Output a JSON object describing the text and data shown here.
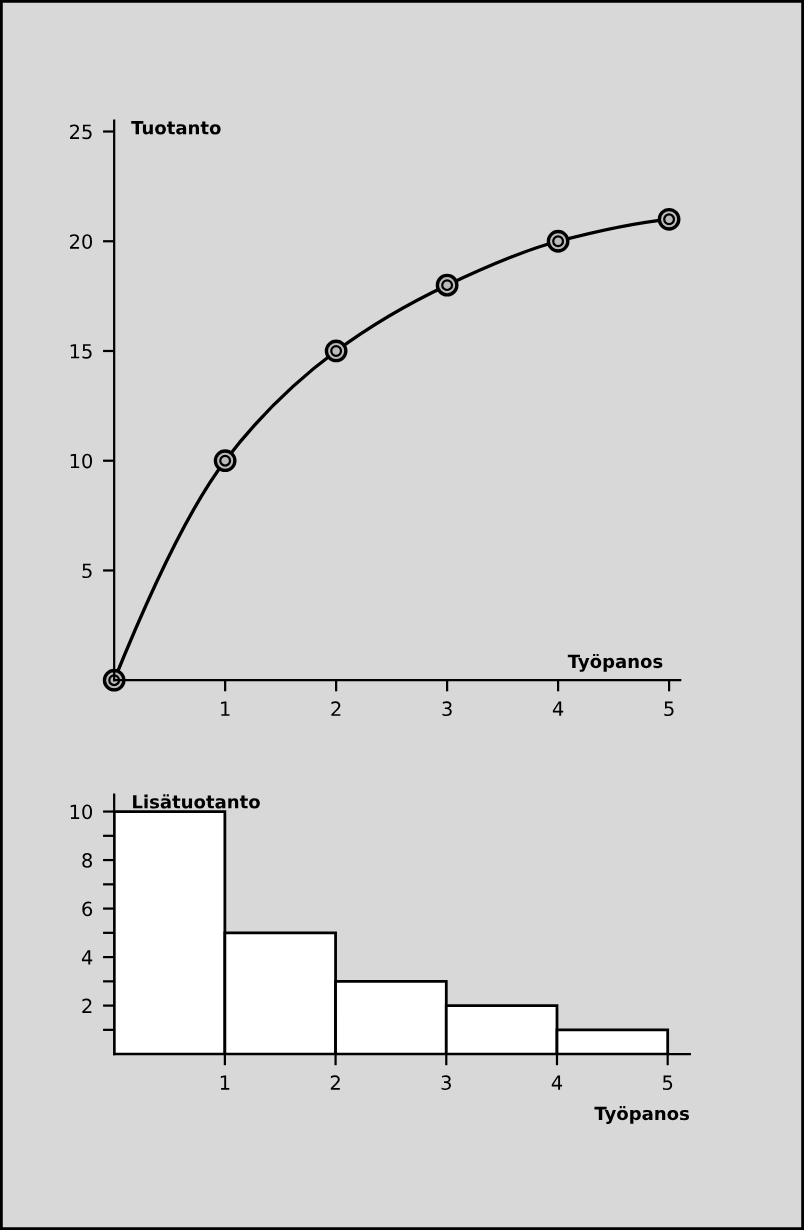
{
  "chart_data": [
    {
      "type": "line",
      "xlabel": "Työpanos",
      "ylabel": "Tuotanto",
      "x": [
        0,
        1,
        2,
        3,
        4,
        5
      ],
      "series": [
        {
          "color": "#000000",
          "values": [
            0,
            10,
            15,
            18,
            20,
            21
          ]
        }
      ],
      "marker": "circle",
      "line_style": "solid",
      "grid": false,
      "legend": false,
      "xlim": [
        0,
        5.1
      ],
      "xticks": [
        1,
        2,
        3,
        4,
        5
      ],
      "ylim": [
        0,
        25.5
      ],
      "yticks": [
        5,
        10,
        15,
        20,
        25
      ]
    },
    {
      "type": "histogram",
      "xlabel": "Työpanos",
      "ylabel": "Lisätuotanto",
      "bins": [
        0,
        1,
        2,
        3,
        4,
        5
      ],
      "values": [
        10,
        5,
        3,
        2,
        1
      ],
      "grid": false,
      "legend": false,
      "xlim": [
        0,
        5.2
      ],
      "xticks": [
        1,
        2,
        3,
        4,
        5
      ],
      "ylim": [
        0,
        10.7
      ],
      "yticks": [
        {
          "value": 1,
          "label": null
        },
        2,
        {
          "value": 3,
          "label": null
        },
        4,
        {
          "value": 5,
          "label": null
        },
        6,
        {
          "value": 7,
          "label": null
        },
        8,
        {
          "value": 9,
          "label": null
        },
        10
      ]
    }
  ]
}
